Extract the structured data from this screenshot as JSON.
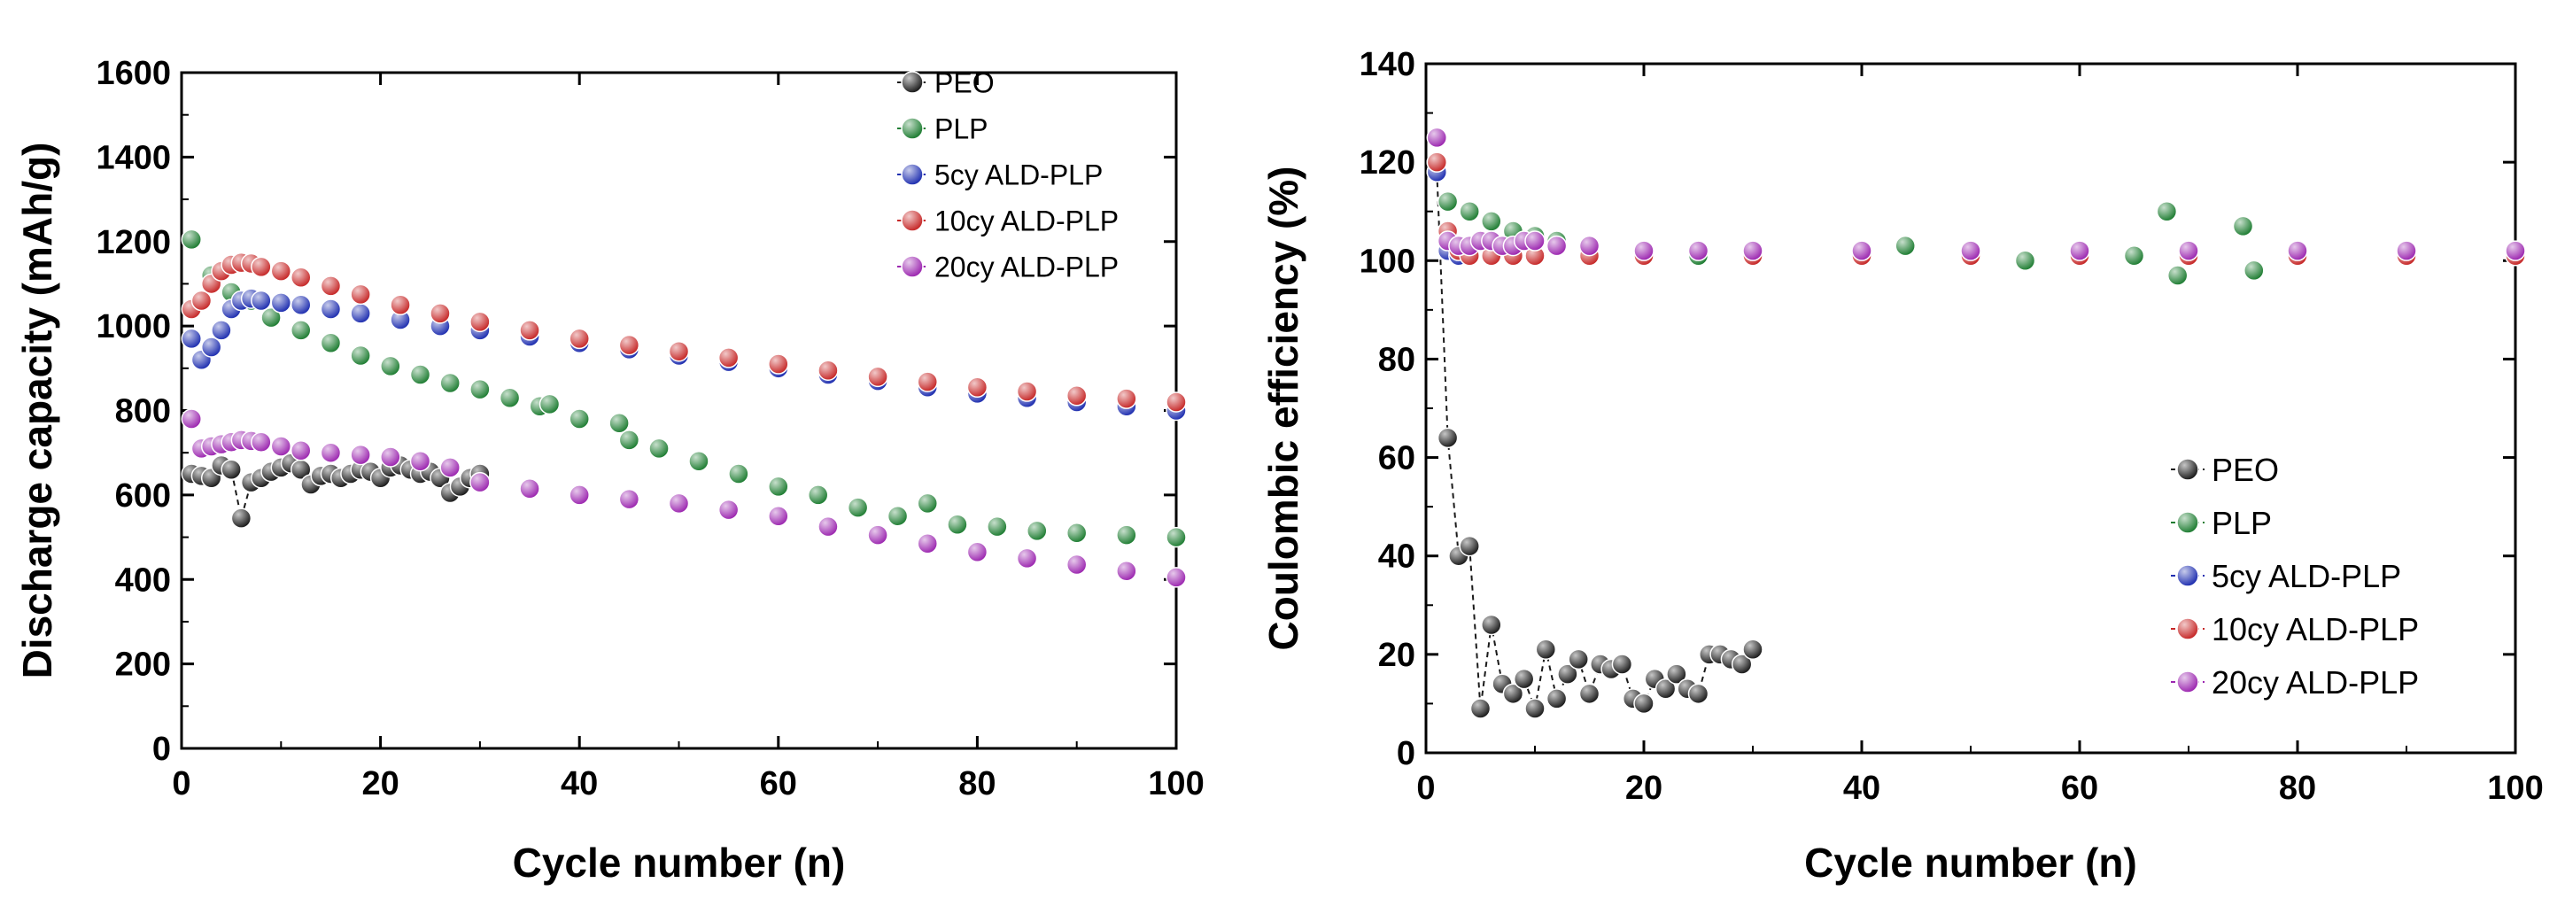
{
  "chart_data": [
    {
      "type": "scatter",
      "panel": "left",
      "xlabel": "Cycle number (n)",
      "ylabel": "Discharge capacity (mAh/g)",
      "xlim": [
        0,
        100
      ],
      "ylim": [
        0,
        1600
      ],
      "xticks": [
        "0",
        "20",
        "40",
        "60",
        "80",
        "100"
      ],
      "yticks": [
        "0",
        "200",
        "400",
        "600",
        "800",
        "1000",
        "1200",
        "1400",
        "1600"
      ],
      "legend_position": "top-right",
      "series": [
        {
          "name": "PEO",
          "color": "#1a1a1a",
          "line": true,
          "x": [
            1,
            2,
            3,
            4,
            5,
            6,
            7,
            8,
            9,
            10,
            11,
            12,
            13,
            14,
            15,
            16,
            17,
            18,
            19,
            20,
            21,
            22,
            23,
            24,
            25,
            26,
            27,
            28,
            29,
            30
          ],
          "y": [
            650,
            645,
            640,
            670,
            660,
            545,
            630,
            640,
            655,
            665,
            675,
            660,
            625,
            645,
            650,
            640,
            650,
            660,
            655,
            640,
            665,
            670,
            660,
            650,
            655,
            640,
            605,
            620,
            640,
            650
          ]
        },
        {
          "name": "PLP",
          "color": "#1e7d32",
          "line": false,
          "x": [
            1,
            3,
            5,
            7,
            9,
            12,
            15,
            18,
            21,
            24,
            27,
            30,
            33,
            36,
            37,
            40,
            44,
            45,
            48,
            52,
            56,
            60,
            64,
            68,
            72,
            75,
            78,
            82,
            86,
            90,
            95,
            100
          ],
          "y": [
            1205,
            1120,
            1080,
            1060,
            1020,
            990,
            960,
            930,
            905,
            885,
            865,
            850,
            830,
            810,
            815,
            780,
            770,
            730,
            710,
            680,
            650,
            620,
            600,
            570,
            550,
            580,
            530,
            525,
            515,
            510,
            505,
            500
          ]
        },
        {
          "name": "5cy ALD-PLP",
          "color": "#1f2fb0",
          "line": false,
          "x": [
            1,
            2,
            3,
            4,
            5,
            6,
            7,
            8,
            10,
            12,
            15,
            18,
            22,
            26,
            30,
            35,
            40,
            45,
            50,
            55,
            60,
            65,
            70,
            75,
            80,
            85,
            90,
            95,
            100
          ],
          "y": [
            970,
            920,
            950,
            990,
            1040,
            1060,
            1065,
            1060,
            1055,
            1050,
            1040,
            1030,
            1015,
            1000,
            990,
            975,
            960,
            945,
            930,
            915,
            900,
            885,
            870,
            855,
            840,
            830,
            820,
            810,
            800
          ]
        },
        {
          "name": "10cy ALD-PLP",
          "color": "#c62828",
          "line": false,
          "x": [
            1,
            2,
            3,
            4,
            5,
            6,
            7,
            8,
            10,
            12,
            15,
            18,
            22,
            26,
            30,
            35,
            40,
            45,
            50,
            55,
            60,
            65,
            70,
            75,
            80,
            85,
            90,
            95,
            100
          ],
          "y": [
            1040,
            1060,
            1100,
            1130,
            1145,
            1150,
            1148,
            1140,
            1130,
            1115,
            1095,
            1075,
            1050,
            1030,
            1010,
            990,
            970,
            955,
            940,
            925,
            910,
            895,
            880,
            868,
            855,
            845,
            835,
            828,
            820
          ]
        },
        {
          "name": "20cy ALD-PLP",
          "color": "#9c27b0",
          "line": false,
          "x": [
            1,
            2,
            3,
            4,
            5,
            6,
            7,
            8,
            10,
            12,
            15,
            18,
            21,
            24,
            27,
            30,
            35,
            40,
            45,
            50,
            55,
            60,
            65,
            70,
            75,
            80,
            85,
            90,
            95,
            100
          ],
          "y": [
            780,
            710,
            715,
            720,
            725,
            730,
            728,
            725,
            715,
            705,
            700,
            695,
            690,
            680,
            665,
            630,
            615,
            600,
            590,
            580,
            565,
            550,
            525,
            505,
            485,
            465,
            450,
            435,
            420,
            405
          ]
        }
      ]
    },
    {
      "type": "scatter",
      "panel": "right",
      "xlabel": "Cycle number (n)",
      "ylabel": "Coulombic efficiency (%)",
      "xlim": [
        0,
        100
      ],
      "ylim": [
        0,
        140
      ],
      "xticks": [
        "0",
        "20",
        "40",
        "60",
        "80",
        "100"
      ],
      "yticks": [
        "0",
        "20",
        "40",
        "60",
        "80",
        "100",
        "120",
        "140"
      ],
      "legend_position": "bottom-right",
      "series": [
        {
          "name": "PEO",
          "color": "#1a1a1a",
          "line": true,
          "x": [
            1,
            2,
            3,
            4,
            5,
            6,
            7,
            8,
            9,
            10,
            11,
            12,
            13,
            14,
            15,
            16,
            17,
            18,
            19,
            20,
            21,
            22,
            23,
            24,
            25,
            26,
            27,
            28,
            29,
            30
          ],
          "y": [
            118,
            64,
            40,
            42,
            9,
            26,
            14,
            12,
            15,
            9,
            21,
            11,
            16,
            19,
            12,
            18,
            17,
            18,
            11,
            10,
            15,
            13,
            16,
            13,
            12,
            20,
            20,
            19,
            18,
            21
          ]
        },
        {
          "name": "PLP",
          "color": "#1e7d32",
          "line": false,
          "x": [
            1,
            2,
            4,
            6,
            8,
            10,
            12,
            15,
            20,
            25,
            30,
            40,
            44,
            50,
            55,
            60,
            65,
            68,
            69,
            70,
            75,
            76,
            80,
            90,
            100
          ],
          "y": [
            120,
            112,
            110,
            108,
            106,
            105,
            104,
            103,
            102,
            101,
            101,
            101,
            103,
            101,
            100,
            101,
            101,
            110,
            97,
            101,
            107,
            98,
            101,
            101,
            101
          ]
        },
        {
          "name": "5cy ALD-PLP",
          "color": "#1f2fb0",
          "line": false,
          "x": [
            1,
            2,
            3,
            4,
            6,
            8,
            10,
            15,
            20,
            30,
            40,
            50,
            60,
            70,
            80,
            90,
            100
          ],
          "y": [
            118,
            102,
            101,
            101,
            101,
            101,
            101,
            101,
            101,
            101,
            101,
            101,
            101,
            101,
            101,
            101,
            101
          ]
        },
        {
          "name": "10cy ALD-PLP",
          "color": "#c62828",
          "line": false,
          "x": [
            1,
            2,
            3,
            4,
            6,
            8,
            10,
            15,
            20,
            30,
            40,
            50,
            60,
            70,
            80,
            90,
            100
          ],
          "y": [
            120,
            106,
            102,
            101,
            101,
            101,
            101,
            101,
            101,
            101,
            101,
            101,
            101,
            101,
            101,
            101,
            101
          ]
        },
        {
          "name": "20cy ALD-PLP",
          "color": "#9c27b0",
          "line": false,
          "x": [
            1,
            2,
            3,
            4,
            5,
            6,
            7,
            8,
            9,
            10,
            12,
            15,
            20,
            25,
            30,
            40,
            50,
            60,
            70,
            80,
            90,
            100
          ],
          "y": [
            125,
            104,
            103,
            103,
            104,
            104,
            103,
            103,
            104,
            104,
            103,
            103,
            102,
            102,
            102,
            102,
            102,
            102,
            102,
            102,
            102,
            102
          ]
        }
      ]
    }
  ]
}
